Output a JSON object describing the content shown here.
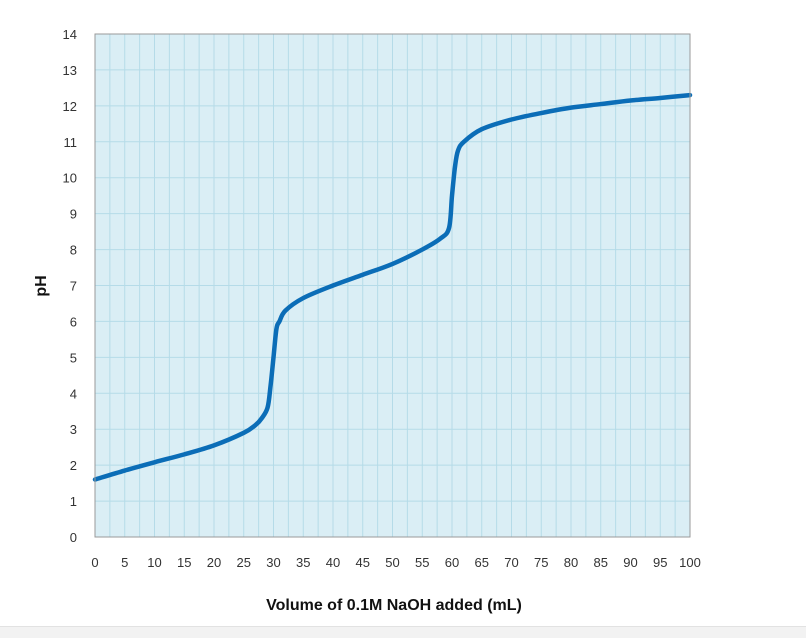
{
  "chart_data": {
    "type": "line",
    "title": "",
    "xlabel": "Volume of 0.1M NaOH added (mL)",
    "ylabel": "pH",
    "xlim": [
      0,
      100
    ],
    "ylim": [
      0,
      14
    ],
    "x_ticks": [
      0,
      5,
      10,
      15,
      20,
      25,
      30,
      35,
      40,
      45,
      50,
      55,
      60,
      65,
      70,
      75,
      80,
      85,
      90,
      95,
      100
    ],
    "y_ticks": [
      0,
      1,
      2,
      3,
      4,
      5,
      6,
      7,
      8,
      9,
      10,
      11,
      12,
      13,
      14
    ],
    "grid": true,
    "colors": {
      "plot_background": "#daeef5",
      "grid": "#b5dbe8",
      "line": "#0b6db7",
      "frame": "#9a9a9a"
    },
    "series": [
      {
        "x": [
          0,
          5,
          10,
          15,
          20,
          25,
          27,
          28,
          29,
          29.5,
          30,
          30.5,
          31,
          32,
          35,
          40,
          45,
          50,
          55,
          58,
          59.5,
          60,
          60.5,
          61,
          62,
          65,
          70,
          75,
          80,
          85,
          90,
          95,
          100
        ],
        "y": [
          1.6,
          1.85,
          2.08,
          2.3,
          2.55,
          2.9,
          3.12,
          3.3,
          3.6,
          4.2,
          5.0,
          5.8,
          6.0,
          6.3,
          6.65,
          7.0,
          7.3,
          7.6,
          8.0,
          8.3,
          8.6,
          9.5,
          10.3,
          10.75,
          11.0,
          11.35,
          11.62,
          11.8,
          11.95,
          12.05,
          12.15,
          12.22,
          12.3
        ]
      }
    ]
  }
}
